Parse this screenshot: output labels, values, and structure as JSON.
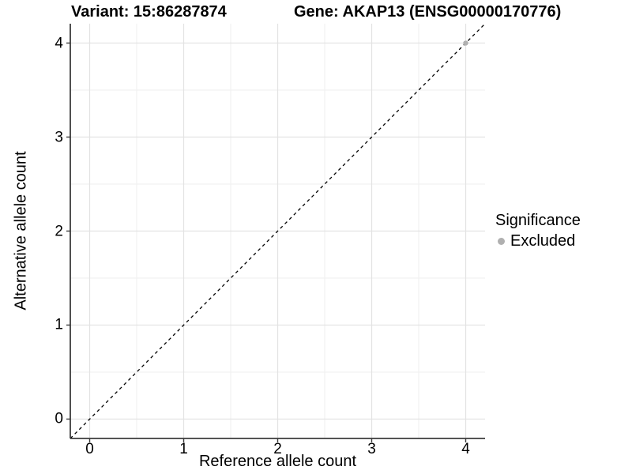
{
  "titles": {
    "variant": "Variant: 15:86287874",
    "gene": "Gene: AKAP13 (ENSG00000170776)"
  },
  "axes": {
    "x_label": "Reference allele count",
    "y_label": "Alternative allele count"
  },
  "legend": {
    "title": "Significance",
    "items": [
      {
        "label": "Excluded",
        "color": "#b0b0b0"
      }
    ]
  },
  "chart_data": {
    "type": "scatter",
    "title": "Variant: 15:86287874   Gene: AKAP13 (ENSG00000170776)",
    "xlabel": "Reference allele count",
    "ylabel": "Alternative allele count",
    "xlim": [
      -0.206,
      4.206
    ],
    "ylim": [
      -0.206,
      4.206
    ],
    "x_ticks": [
      0,
      1,
      2,
      3,
      4
    ],
    "y_ticks": [
      0,
      1,
      2,
      3,
      4
    ],
    "x_minor_ticks": [
      0.5,
      1.5,
      2.5,
      3.5
    ],
    "y_minor_ticks": [
      0.5,
      1.5,
      2.5,
      3.5
    ],
    "grid": true,
    "legend_position": "right",
    "series": [
      {
        "name": "Excluded",
        "color": "#b0b0b0",
        "points": [
          [
            4,
            4
          ]
        ]
      }
    ],
    "reference_line": {
      "type": "identity",
      "slope": 1,
      "intercept": 0,
      "style": "dashed",
      "color": "#000000"
    }
  },
  "colors": {
    "background": "#ffffff",
    "grid_major": "#e3e3e3",
    "grid_minor": "#efefef",
    "axis_line": "#3c3c3c",
    "text": "#000000",
    "excluded_point": "#b0b0b0"
  }
}
